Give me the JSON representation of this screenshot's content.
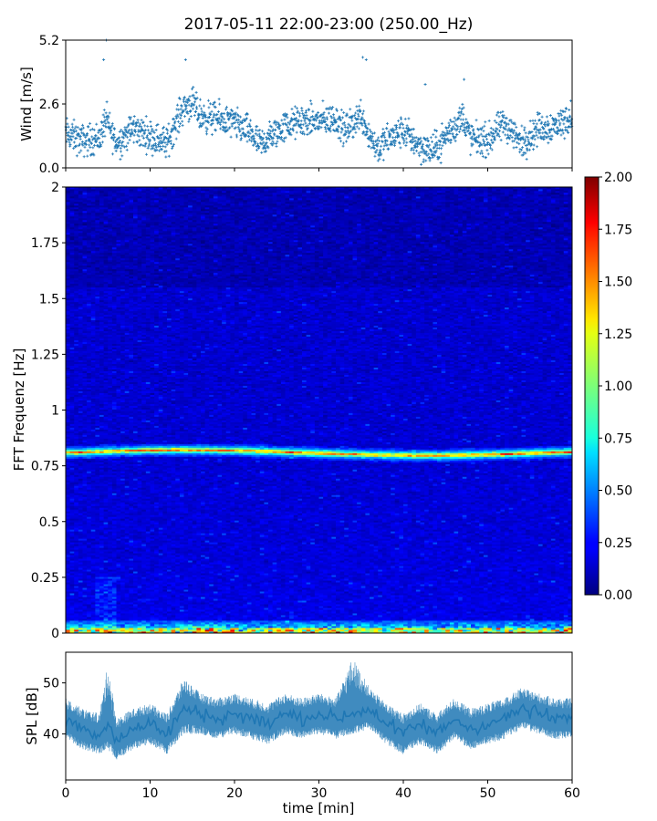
{
  "title": "2017-05-11 22:00-23:00 (250.00_Hz)",
  "chart_data": [
    {
      "name": "wind",
      "type": "scatter",
      "ylabel": "Wind [m/s]",
      "ylim": [
        0.0,
        5.2
      ],
      "yticks": [
        "0.0",
        "2.6",
        "5.2"
      ],
      "xlim": [
        0,
        60
      ],
      "color": "#1f77b4",
      "marker": "+",
      "time_minutes": [
        0,
        2,
        4,
        4.8,
        5.2,
        6,
        8,
        10,
        12,
        13,
        14,
        15,
        16,
        18,
        20,
        22,
        23,
        24,
        26,
        28,
        30,
        32,
        33,
        34,
        35,
        36,
        37,
        38,
        40,
        42,
        43,
        44,
        45,
        46,
        47,
        48,
        50,
        51,
        52,
        53,
        54,
        56,
        58,
        60
      ],
      "wind_mean": [
        1.4,
        1.1,
        1.2,
        2.0,
        1.6,
        1.0,
        1.6,
        1.3,
        1.0,
        1.8,
        2.5,
        2.6,
        2.1,
        2.0,
        1.8,
        1.4,
        0.9,
        1.2,
        1.7,
        1.9,
        1.9,
        2.0,
        1.5,
        1.8,
        2.2,
        1.3,
        0.8,
        1.1,
        1.5,
        0.9,
        0.7,
        0.8,
        1.3,
        1.6,
        2.1,
        1.2,
        1.1,
        1.5,
        1.8,
        1.4,
        1.0,
        1.6,
        1.7,
        2.1
      ],
      "peaks": [
        {
          "t": 4.8,
          "v": 5.2
        },
        {
          "t": 4.5,
          "v": 4.4
        },
        {
          "t": 14.2,
          "v": 4.4
        },
        {
          "t": 35.2,
          "v": 4.5
        },
        {
          "t": 35.6,
          "v": 4.4
        },
        {
          "t": 42.6,
          "v": 3.4
        },
        {
          "t": 47.2,
          "v": 3.6
        }
      ]
    },
    {
      "name": "spectrogram",
      "type": "heatmap",
      "ylabel": "FFT Frequenz [Hz]",
      "ylim": [
        0,
        2
      ],
      "yticks": [
        "0",
        "0.25",
        "0.5",
        "0.75",
        "1",
        "1.25",
        "1.5",
        "1.75",
        "2"
      ],
      "xlim": [
        0,
        60
      ],
      "colormap": "jet",
      "band_frequency_hz": 0.81,
      "background_level": 0.15,
      "colorbar": {
        "range": [
          0.0,
          2.0
        ],
        "ticks": [
          "0.00",
          "0.25",
          "0.50",
          "0.75",
          "1.00",
          "1.25",
          "1.50",
          "1.75",
          "2.00"
        ]
      }
    },
    {
      "name": "spl",
      "type": "area",
      "ylabel": "SPL [dB]",
      "xlabel": "time [min]",
      "xlim": [
        0,
        60
      ],
      "ylim": [
        31,
        56
      ],
      "yticks": [
        "40",
        "50"
      ],
      "xticks": [
        "0",
        "10",
        "20",
        "30",
        "40",
        "50",
        "60"
      ],
      "color": "#1f77b4",
      "time_minutes": [
        0,
        2,
        4,
        5,
        6,
        8,
        10,
        12,
        14,
        16,
        18,
        20,
        22,
        24,
        26,
        28,
        30,
        32,
        34,
        36,
        38,
        40,
        42,
        44,
        46,
        48,
        50,
        52,
        54,
        56,
        58,
        60
      ],
      "spl_mean": [
        43,
        41,
        40,
        42,
        39,
        41,
        42,
        40,
        45,
        44,
        43,
        44,
        43,
        42,
        44,
        43,
        44,
        43,
        44,
        45,
        42,
        40,
        42,
        40,
        43,
        41,
        42,
        43,
        45,
        44,
        43,
        43
      ],
      "spl_low": [
        39,
        37,
        36,
        37,
        35,
        37,
        38,
        36,
        40,
        40,
        39,
        40,
        39,
        38,
        40,
        39,
        40,
        39,
        40,
        41,
        38,
        36,
        38,
        36,
        39,
        37,
        38,
        39,
        41,
        40,
        39,
        39
      ],
      "spl_high": [
        47,
        45,
        44,
        54,
        43,
        45,
        46,
        44,
        51,
        48,
        47,
        48,
        47,
        46,
        48,
        47,
        48,
        47,
        55,
        49,
        46,
        44,
        46,
        44,
        47,
        45,
        46,
        47,
        49,
        48,
        47,
        47
      ]
    }
  ]
}
